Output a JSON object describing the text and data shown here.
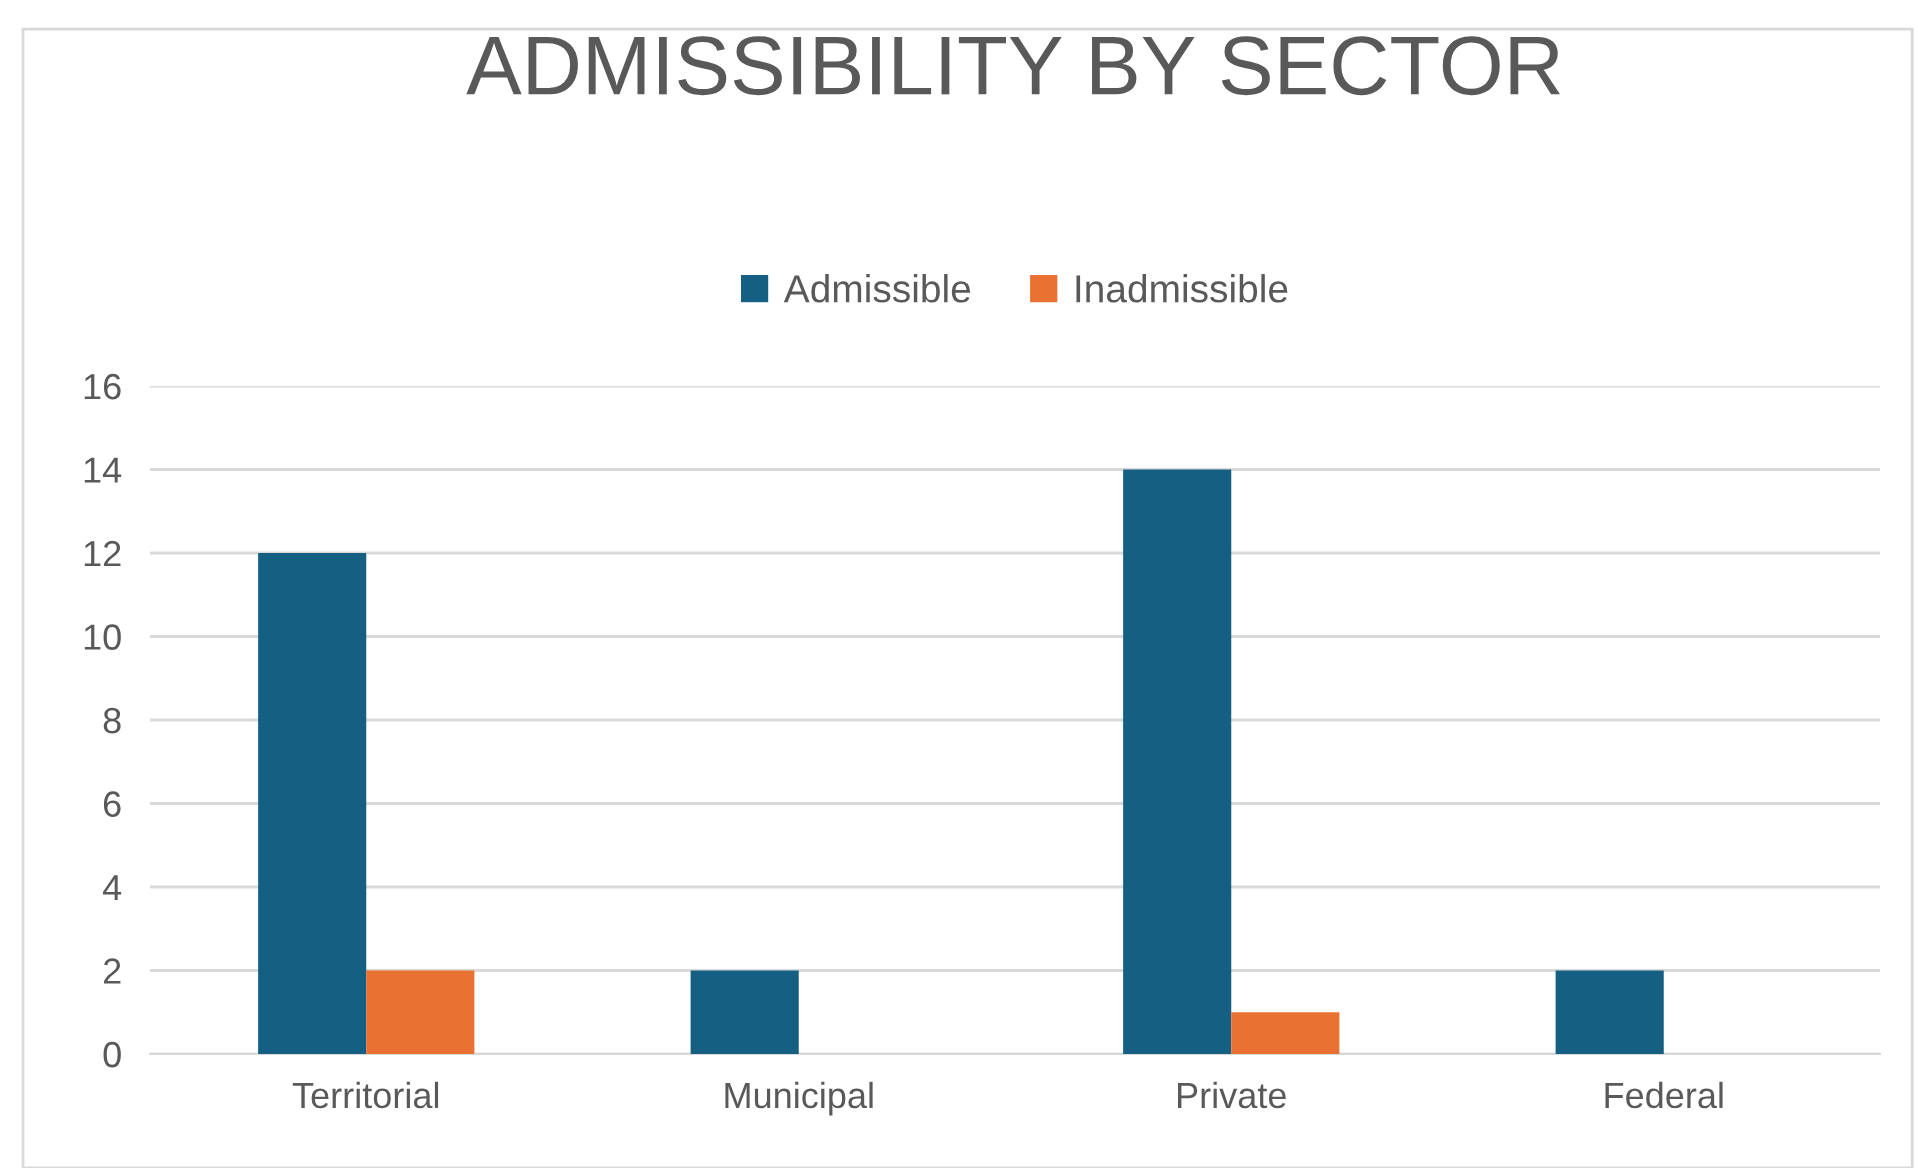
{
  "chart_data": {
    "type": "bar",
    "title": "ADMISSIBILITY BY SECTOR",
    "categories": [
      "Territorial",
      "Municipal",
      "Private",
      "Federal"
    ],
    "series": [
      {
        "name": "Admissible",
        "color": "#155f82",
        "values": [
          12,
          2,
          14,
          2
        ]
      },
      {
        "name": "Inadmissible",
        "color": "#e97132",
        "values": [
          2,
          0,
          1,
          0
        ]
      }
    ],
    "ylim": [
      0,
      16
    ],
    "yticks": [
      0,
      2,
      4,
      6,
      8,
      10,
      12,
      14,
      16
    ],
    "grid": "y",
    "legend": "top"
  }
}
